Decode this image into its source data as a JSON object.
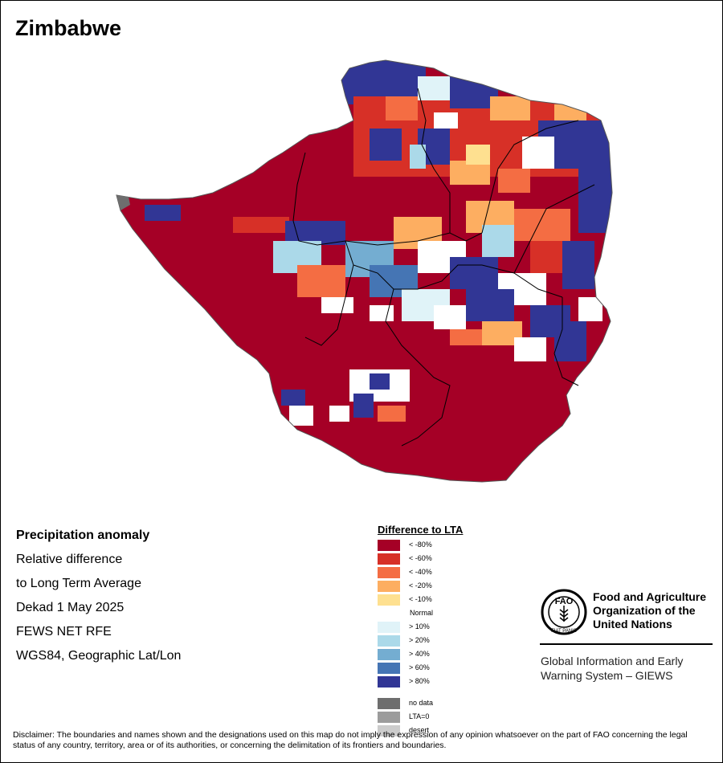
{
  "title": "Zimbabwe",
  "info": {
    "heading": "Precipitation anomaly",
    "line1": "Relative difference",
    "line2": "to Long Term Average",
    "dekad": "Dekad 1 May 2025",
    "source": "FEWS NET RFE",
    "projection": "WGS84, Geographic Lat/Lon"
  },
  "legend": {
    "title": "Difference to LTA",
    "items": [
      {
        "label": "< -80%",
        "color": "#a50026"
      },
      {
        "label": "< -60%",
        "color": "#d73027"
      },
      {
        "label": "< -40%",
        "color": "#f46d43"
      },
      {
        "label": "< -20%",
        "color": "#fdae61"
      },
      {
        "label": "< -10%",
        "color": "#fee090"
      },
      {
        "label": "Normal",
        "color": "#ffffff"
      },
      {
        "label": "> 10%",
        "color": "#e0f3f8"
      },
      {
        "label": "> 20%",
        "color": "#abd9e9"
      },
      {
        "label": "> 40%",
        "color": "#74add1"
      },
      {
        "label": "> 60%",
        "color": "#4575b4"
      },
      {
        "label": "> 80%",
        "color": "#313695"
      },
      {
        "label": "no data",
        "color": "#6e6e6e"
      },
      {
        "label": "LTA=0",
        "color": "#9c9c9c"
      },
      {
        "label": "desert",
        "color": "#cccccc"
      }
    ]
  },
  "logo": {
    "org_line1": "Food and Agriculture",
    "org_line2": "Organization of the",
    "org_line3": "United Nations",
    "logo_text": "FAO",
    "motto": "FIAT PANIS",
    "system_line1": "Global Information and Early",
    "system_line2": "Warning System – GIEWS"
  },
  "disclaimer": "Disclaimer: The boundaries and names shown and the designations used on this map do not imply the expression of any opinion whatsoever on the part of FAO concerning the legal status of any country, territory, area or of its authorities, or concerning the delimitation of its frontiers and boundaries."
}
